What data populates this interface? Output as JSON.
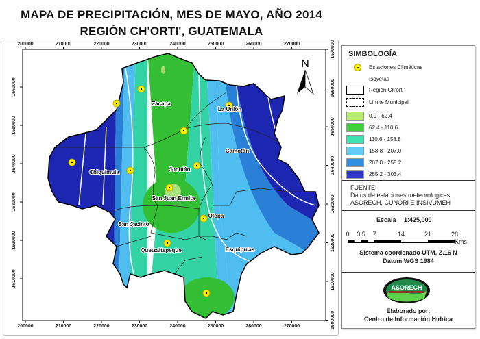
{
  "title": {
    "line1": "MAPA DE PRECIPITACIÓN, MES DE MAYO, AÑO 2014",
    "line2": "REGIÓN CH'ORTI', GUATEMALA"
  },
  "axes": {
    "x_ticks": [
      "200000",
      "210000",
      "220000",
      "230000",
      "240000",
      "250000",
      "260000",
      "270000"
    ],
    "y_ticks_left": [
      "1660000",
      "1650000",
      "1640000",
      "1630000",
      "1620000",
      "1610000"
    ],
    "y_ticks_right": [
      "1670000",
      "1660000",
      "1650000",
      "1640000",
      "1630000",
      "1620000",
      "1610000",
      "1600000"
    ]
  },
  "north_label": "N",
  "places": [
    "Zacapa",
    "La Unión",
    "Camotán",
    "Chiquimula",
    "Jocotán",
    "San Juan Ermita",
    "San Jacinto",
    "Olopa",
    "Quetzaltepeque",
    "Esquipulas"
  ],
  "legend": {
    "heading": "SIMBOLOGÍA",
    "stations": "Estaciones Climáticas",
    "isoyets": "Isoyetas",
    "region": "Región Ch'orti'",
    "municipal": "Límite Municipal",
    "classes": [
      {
        "label": "0.0 - 62.4",
        "color": "#b8ec72"
      },
      {
        "label": "62.4 - 110.6",
        "color": "#3fcf3a"
      },
      {
        "label": "110.6 - 158.8",
        "color": "#3fe3b2"
      },
      {
        "label": "158.8 - 207.0",
        "color": "#62ccf6"
      },
      {
        "label": "207.0 - 255.2",
        "color": "#2f8ee0"
      },
      {
        "label": "255.2 - 303.4",
        "color": "#2f35c8"
      }
    ]
  },
  "source": {
    "heading": "FUENTE:",
    "line1": "Datos de estaciones meteorologicas",
    "line2": "ASORECH, CUNORI E INSIVUMEH"
  },
  "scale": {
    "label": "Escala",
    "ratio": "1:425,000",
    "ticks": [
      "0",
      "3.5",
      "7",
      "14",
      "21",
      "28"
    ],
    "unit": "Kms"
  },
  "crs": {
    "line1": "Sistema coordenado UTM, Z.16 N",
    "line2": "Datum WGS 1984"
  },
  "logo_text": "ASORECH",
  "credits": {
    "line1": "Elaborado por:",
    "line2": "Centro de Información Hídrica"
  }
}
